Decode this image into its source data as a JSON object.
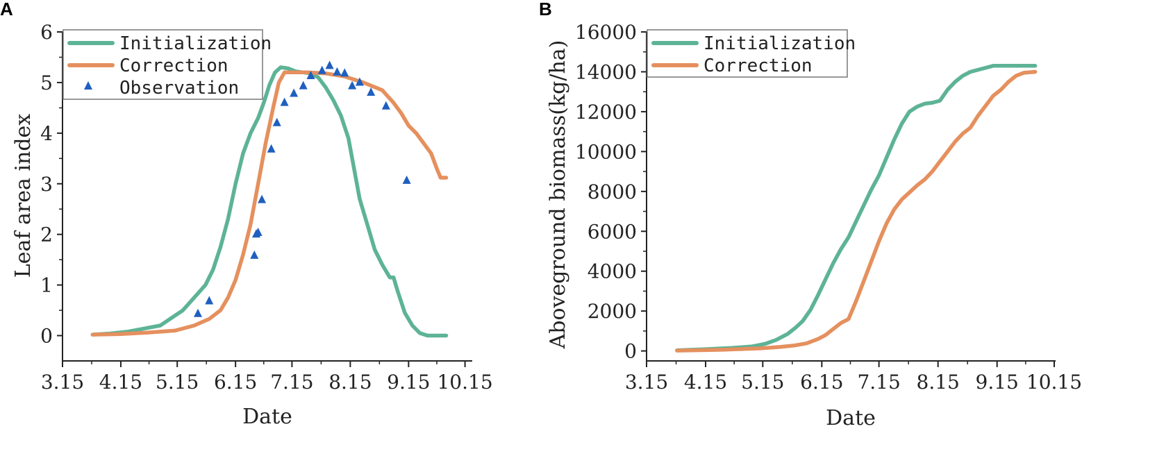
{
  "chart_data": [
    {
      "panel": "A",
      "type": "line",
      "title": "",
      "xlabel": "Date",
      "ylabel": "Leaf area index",
      "x_ticks": [
        {
          "day": 0,
          "label": "3.15"
        },
        {
          "day": 31,
          "label": "4.15"
        },
        {
          "day": 61,
          "label": "5.15"
        },
        {
          "day": 92,
          "label": "6.15"
        },
        {
          "day": 122,
          "label": "7.15"
        },
        {
          "day": 153,
          "label": "8.15"
        },
        {
          "day": 184,
          "label": "9.15"
        },
        {
          "day": 214,
          "label": "10.15"
        }
      ],
      "xlim": [
        0,
        216
      ],
      "ylim": [
        -0.5,
        6
      ],
      "y_ticks": [
        0,
        1,
        2,
        3,
        4,
        5,
        6
      ],
      "legend": [
        "Initialization",
        "Correction",
        "Observation"
      ],
      "series": [
        {
          "name": "Initialization",
          "color": "#5db395",
          "points": [
            [
              16,
              0.02
            ],
            [
              25,
              0.04
            ],
            [
              35,
              0.08
            ],
            [
              45,
              0.15
            ],
            [
              52,
              0.2
            ],
            [
              58,
              0.35
            ],
            [
              64,
              0.5
            ],
            [
              70,
              0.75
            ],
            [
              76,
              1.0
            ],
            [
              80,
              1.3
            ],
            [
              84,
              1.75
            ],
            [
              88,
              2.3
            ],
            [
              92,
              3.0
            ],
            [
              96,
              3.6
            ],
            [
              100,
              4.0
            ],
            [
              104,
              4.3
            ],
            [
              107,
              4.6
            ],
            [
              110,
              4.95
            ],
            [
              113,
              5.2
            ],
            [
              116,
              5.3
            ],
            [
              120,
              5.28
            ],
            [
              124,
              5.22
            ],
            [
              128,
              5.2
            ],
            [
              132,
              5.18
            ],
            [
              136,
              5.1
            ],
            [
              140,
              4.9
            ],
            [
              144,
              4.65
            ],
            [
              148,
              4.35
            ],
            [
              152,
              3.9
            ],
            [
              155,
              3.3
            ],
            [
              158,
              2.7
            ],
            [
              162,
              2.2
            ],
            [
              166,
              1.7
            ],
            [
              170,
              1.4
            ],
            [
              174,
              1.15
            ],
            [
              176,
              1.15
            ],
            [
              178,
              0.9
            ],
            [
              182,
              0.45
            ],
            [
              186,
              0.2
            ],
            [
              190,
              0.05
            ],
            [
              194,
              0.0
            ],
            [
              200,
              0.0
            ],
            [
              204,
              0.0
            ]
          ]
        },
        {
          "name": "Correction",
          "color": "#e5905e",
          "points": [
            [
              16,
              0.02
            ],
            [
              30,
              0.03
            ],
            [
              45,
              0.06
            ],
            [
              60,
              0.1
            ],
            [
              70,
              0.2
            ],
            [
              78,
              0.33
            ],
            [
              84,
              0.5
            ],
            [
              88,
              0.75
            ],
            [
              92,
              1.1
            ],
            [
              96,
              1.6
            ],
            [
              100,
              2.2
            ],
            [
              104,
              3.0
            ],
            [
              108,
              3.8
            ],
            [
              112,
              4.5
            ],
            [
              115,
              5.0
            ],
            [
              118,
              5.2
            ],
            [
              122,
              5.2
            ],
            [
              130,
              5.2
            ],
            [
              140,
              5.18
            ],
            [
              150,
              5.12
            ],
            [
              160,
              5.0
            ],
            [
              170,
              4.85
            ],
            [
              176,
              4.6
            ],
            [
              180,
              4.4
            ],
            [
              184,
              4.15
            ],
            [
              188,
              4.0
            ],
            [
              192,
              3.8
            ],
            [
              196,
              3.6
            ],
            [
              199,
              3.3
            ],
            [
              201,
              3.12
            ],
            [
              204,
              3.12
            ]
          ]
        }
      ],
      "observations": {
        "name": "Observation",
        "color": "#1f5fbf",
        "points": [
          [
            72,
            0.45
          ],
          [
            78,
            0.7
          ],
          [
            102,
            1.6
          ],
          [
            103,
            2.02
          ],
          [
            104,
            2.05
          ],
          [
            106,
            2.7
          ],
          [
            111,
            3.7
          ],
          [
            114,
            4.22
          ],
          [
            118,
            4.62
          ],
          [
            123,
            4.8
          ],
          [
            128,
            4.95
          ],
          [
            132,
            5.15
          ],
          [
            138,
            5.25
          ],
          [
            142,
            5.35
          ],
          [
            146,
            5.22
          ],
          [
            150,
            5.2
          ],
          [
            154,
            4.95
          ],
          [
            158,
            5.02
          ],
          [
            164,
            4.82
          ],
          [
            172,
            4.55
          ],
          [
            183,
            3.08
          ]
        ]
      }
    },
    {
      "panel": "B",
      "type": "line",
      "title": "",
      "xlabel": "Date",
      "ylabel": "Aboveground biomass(kg/ha)",
      "x_ticks": [
        {
          "day": 0,
          "label": "3.15"
        },
        {
          "day": 31,
          "label": "4.15"
        },
        {
          "day": 61,
          "label": "5.15"
        },
        {
          "day": 92,
          "label": "6.15"
        },
        {
          "day": 122,
          "label": "7.15"
        },
        {
          "day": 153,
          "label": "8.15"
        },
        {
          "day": 184,
          "label": "9.15"
        },
        {
          "day": 214,
          "label": "10.15"
        }
      ],
      "xlim": [
        0,
        214
      ],
      "ylim": [
        -500,
        16000
      ],
      "y_ticks": [
        0,
        2000,
        4000,
        6000,
        8000,
        10000,
        12000,
        14000,
        16000
      ],
      "legend": [
        "Initialization",
        "Correction"
      ],
      "series": [
        {
          "name": "Initialization",
          "color": "#5db395",
          "points": [
            [
              16,
              30
            ],
            [
              30,
              80
            ],
            [
              45,
              150
            ],
            [
              55,
              220
            ],
            [
              62,
              350
            ],
            [
              68,
              550
            ],
            [
              74,
              850
            ],
            [
              78,
              1150
            ],
            [
              82,
              1500
            ],
            [
              86,
              2050
            ],
            [
              90,
              2800
            ],
            [
              94,
              3600
            ],
            [
              98,
              4400
            ],
            [
              102,
              5100
            ],
            [
              106,
              5700
            ],
            [
              110,
              6500
            ],
            [
              114,
              7300
            ],
            [
              118,
              8100
            ],
            [
              122,
              8800
            ],
            [
              126,
              9700
            ],
            [
              130,
              10600
            ],
            [
              134,
              11400
            ],
            [
              138,
              12000
            ],
            [
              142,
              12250
            ],
            [
              146,
              12400
            ],
            [
              150,
              12450
            ],
            [
              154,
              12550
            ],
            [
              158,
              13100
            ],
            [
              162,
              13500
            ],
            [
              166,
              13800
            ],
            [
              170,
              14000
            ],
            [
              176,
              14150
            ],
            [
              182,
              14300
            ],
            [
              190,
              14300
            ],
            [
              196,
              14300
            ],
            [
              204,
              14300
            ]
          ]
        },
        {
          "name": "Correction",
          "color": "#e5905e",
          "points": [
            [
              16,
              20
            ],
            [
              40,
              60
            ],
            [
              60,
              130
            ],
            [
              70,
              200
            ],
            [
              78,
              280
            ],
            [
              84,
              380
            ],
            [
              90,
              600
            ],
            [
              94,
              800
            ],
            [
              98,
              1100
            ],
            [
              102,
              1400
            ],
            [
              106,
              1600
            ],
            [
              110,
              2500
            ],
            [
              114,
              3500
            ],
            [
              118,
              4500
            ],
            [
              122,
              5500
            ],
            [
              126,
              6400
            ],
            [
              130,
              7100
            ],
            [
              134,
              7600
            ],
            [
              138,
              7950
            ],
            [
              142,
              8300
            ],
            [
              146,
              8600
            ],
            [
              150,
              9000
            ],
            [
              154,
              9500
            ],
            [
              158,
              10000
            ],
            [
              162,
              10500
            ],
            [
              166,
              10900
            ],
            [
              170,
              11200
            ],
            [
              174,
              11800
            ],
            [
              178,
              12300
            ],
            [
              182,
              12800
            ],
            [
              186,
              13100
            ],
            [
              190,
              13500
            ],
            [
              194,
              13800
            ],
            [
              198,
              13950
            ],
            [
              204,
              14000
            ]
          ]
        }
      ]
    }
  ]
}
